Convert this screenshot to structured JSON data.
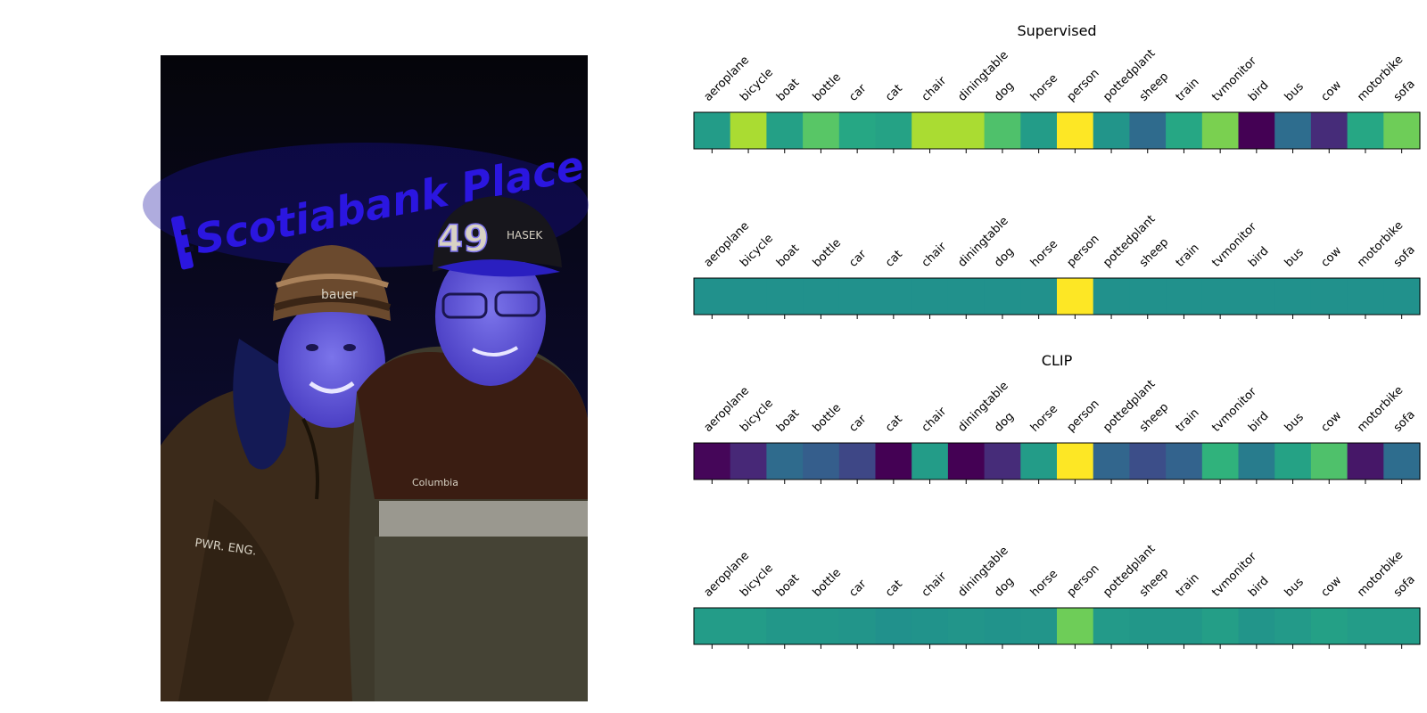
{
  "photo": {
    "sign_text": "Scotiabank Place",
    "jersey_number": "49",
    "cap_text": "HASEK",
    "beanie_text": "bauer",
    "jacket_text": "PWR. ENG.",
    "brand_text": "Columbia"
  },
  "chart_data": [
    {
      "type": "heatmap",
      "title": "Supervised",
      "categories": [
        "aeroplane",
        "bicycle",
        "boat",
        "bottle",
        "car",
        "cat",
        "chair",
        "diningtable",
        "dog",
        "horse",
        "person",
        "pottedplant",
        "sheep",
        "train",
        "tvmonitor",
        "bird",
        "bus",
        "cow",
        "motorbike",
        "sofa"
      ],
      "values": [
        0.55,
        0.88,
        0.57,
        0.74,
        0.6,
        0.58,
        0.88,
        0.88,
        0.72,
        0.55,
        1.0,
        0.52,
        0.35,
        0.6,
        0.8,
        0.0,
        0.36,
        0.15,
        0.6,
        0.78
      ],
      "colormap": "viridis"
    },
    {
      "type": "heatmap",
      "title": "",
      "categories": [
        "aeroplane",
        "bicycle",
        "boat",
        "bottle",
        "car",
        "cat",
        "chair",
        "diningtable",
        "dog",
        "horse",
        "person",
        "pottedplant",
        "sheep",
        "train",
        "tvmonitor",
        "bird",
        "bus",
        "cow",
        "motorbike",
        "sofa"
      ],
      "values": [
        0.5,
        0.5,
        0.5,
        0.5,
        0.5,
        0.5,
        0.5,
        0.5,
        0.5,
        0.5,
        1.0,
        0.5,
        0.5,
        0.5,
        0.5,
        0.5,
        0.5,
        0.5,
        0.5,
        0.5
      ],
      "colormap": "viridis"
    },
    {
      "type": "heatmap",
      "title": "CLIP",
      "categories": [
        "aeroplane",
        "bicycle",
        "boat",
        "bottle",
        "car",
        "cat",
        "chair",
        "diningtable",
        "dog",
        "horse",
        "person",
        "pottedplant",
        "sheep",
        "train",
        "tvmonitor",
        "bird",
        "bus",
        "cow",
        "motorbike",
        "sofa"
      ],
      "values": [
        0.02,
        0.14,
        0.35,
        0.3,
        0.22,
        0.0,
        0.55,
        0.0,
        0.15,
        0.55,
        1.0,
        0.33,
        0.24,
        0.32,
        0.65,
        0.42,
        0.58,
        0.72,
        0.08,
        0.36
      ],
      "colormap": "viridis"
    },
    {
      "type": "heatmap",
      "title": "",
      "categories": [
        "aeroplane",
        "bicycle",
        "boat",
        "bottle",
        "car",
        "cat",
        "chair",
        "diningtable",
        "dog",
        "horse",
        "person",
        "pottedplant",
        "sheep",
        "train",
        "tvmonitor",
        "bird",
        "bus",
        "cow",
        "motorbike",
        "sofa"
      ],
      "values": [
        0.55,
        0.55,
        0.53,
        0.53,
        0.52,
        0.5,
        0.51,
        0.52,
        0.51,
        0.52,
        0.78,
        0.54,
        0.53,
        0.53,
        0.56,
        0.52,
        0.54,
        0.57,
        0.55,
        0.55
      ],
      "colormap": "viridis"
    }
  ]
}
